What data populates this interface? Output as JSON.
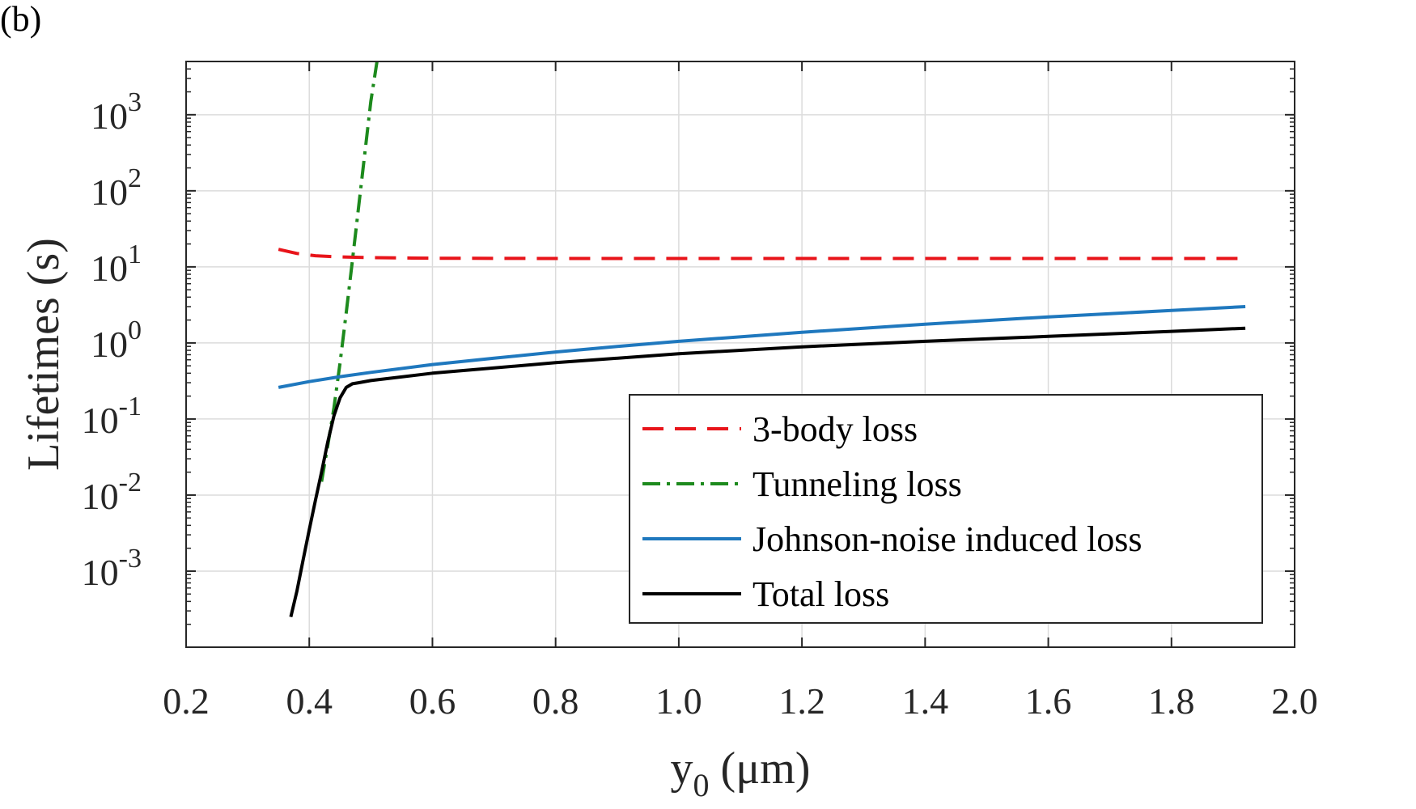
{
  "chart_data": {
    "type": "line",
    "panel_label": "(b)",
    "xlabel": {
      "base": "y",
      "sub": "0",
      "unit": " (μm)"
    },
    "ylabel": "Lifetimes (s)",
    "xlim": [
      0.2,
      2.0
    ],
    "ylim_exp": [
      -4,
      3.7
    ],
    "yscale": "log",
    "grid": true,
    "legend_position": "lower-right",
    "x_ticks": [
      {
        "value": 0.2,
        "label": "0.2"
      },
      {
        "value": 0.4,
        "label": "0.4"
      },
      {
        "value": 0.6,
        "label": "0.6"
      },
      {
        "value": 0.8,
        "label": "0.8"
      },
      {
        "value": 1.0,
        "label": "1.0"
      },
      {
        "value": 1.2,
        "label": "1.2"
      },
      {
        "value": 1.4,
        "label": "1.4"
      },
      {
        "value": 1.6,
        "label": "1.6"
      },
      {
        "value": 1.8,
        "label": "1.8"
      },
      {
        "value": 2.0,
        "label": "2.0"
      }
    ],
    "y_ticks": [
      {
        "exp": -3,
        "base": "10",
        "sup": "-3"
      },
      {
        "exp": -2,
        "base": "10",
        "sup": "-2"
      },
      {
        "exp": -1,
        "base": "10",
        "sup": "-1"
      },
      {
        "exp": 0,
        "base": "10",
        "sup": "0"
      },
      {
        "exp": 1,
        "base": "10",
        "sup": "1"
      },
      {
        "exp": 2,
        "base": "10",
        "sup": "2"
      },
      {
        "exp": 3,
        "base": "10",
        "sup": "3"
      }
    ],
    "series": [
      {
        "name": "3-body loss",
        "color": "#e8141a",
        "style": "dashed",
        "x": [
          0.35,
          0.38,
          0.41,
          0.45,
          0.5,
          0.6,
          0.8,
          1.0,
          1.2,
          1.4,
          1.6,
          1.8,
          1.92
        ],
        "y": [
          17,
          15,
          14,
          13.5,
          13.2,
          13.0,
          12.9,
          12.9,
          12.9,
          12.9,
          12.9,
          12.9,
          12.9
        ]
      },
      {
        "name": "Tunneling loss",
        "color": "#1d8a1d",
        "style": "dashdot",
        "x": [
          0.42,
          0.43,
          0.44,
          0.45,
          0.46,
          0.47,
          0.48,
          0.49,
          0.5,
          0.51
        ],
        "y": [
          0.015,
          0.045,
          0.14,
          0.55,
          2.5,
          12,
          60,
          300,
          1500,
          5000
        ]
      },
      {
        "name": "Johnson-noise induced loss",
        "color": "#1f78be",
        "style": "solid",
        "x": [
          0.35,
          0.4,
          0.45,
          0.5,
          0.6,
          0.7,
          0.8,
          0.9,
          1.0,
          1.2,
          1.4,
          1.6,
          1.8,
          1.92
        ],
        "y": [
          0.26,
          0.31,
          0.36,
          0.41,
          0.52,
          0.63,
          0.76,
          0.9,
          1.05,
          1.38,
          1.76,
          2.2,
          2.67,
          3.0
        ]
      },
      {
        "name": "Total loss",
        "color": "#000000",
        "style": "solid",
        "x": [
          0.37,
          0.38,
          0.39,
          0.4,
          0.41,
          0.42,
          0.43,
          0.44,
          0.45,
          0.46,
          0.47,
          0.48,
          0.5,
          0.6,
          0.8,
          1.0,
          1.2,
          1.4,
          1.6,
          1.8,
          1.92
        ],
        "y": [
          0.00025,
          0.00055,
          0.0014,
          0.0035,
          0.0085,
          0.02,
          0.05,
          0.11,
          0.19,
          0.26,
          0.29,
          0.3,
          0.32,
          0.4,
          0.55,
          0.72,
          0.89,
          1.05,
          1.22,
          1.42,
          1.56
        ]
      }
    ]
  }
}
